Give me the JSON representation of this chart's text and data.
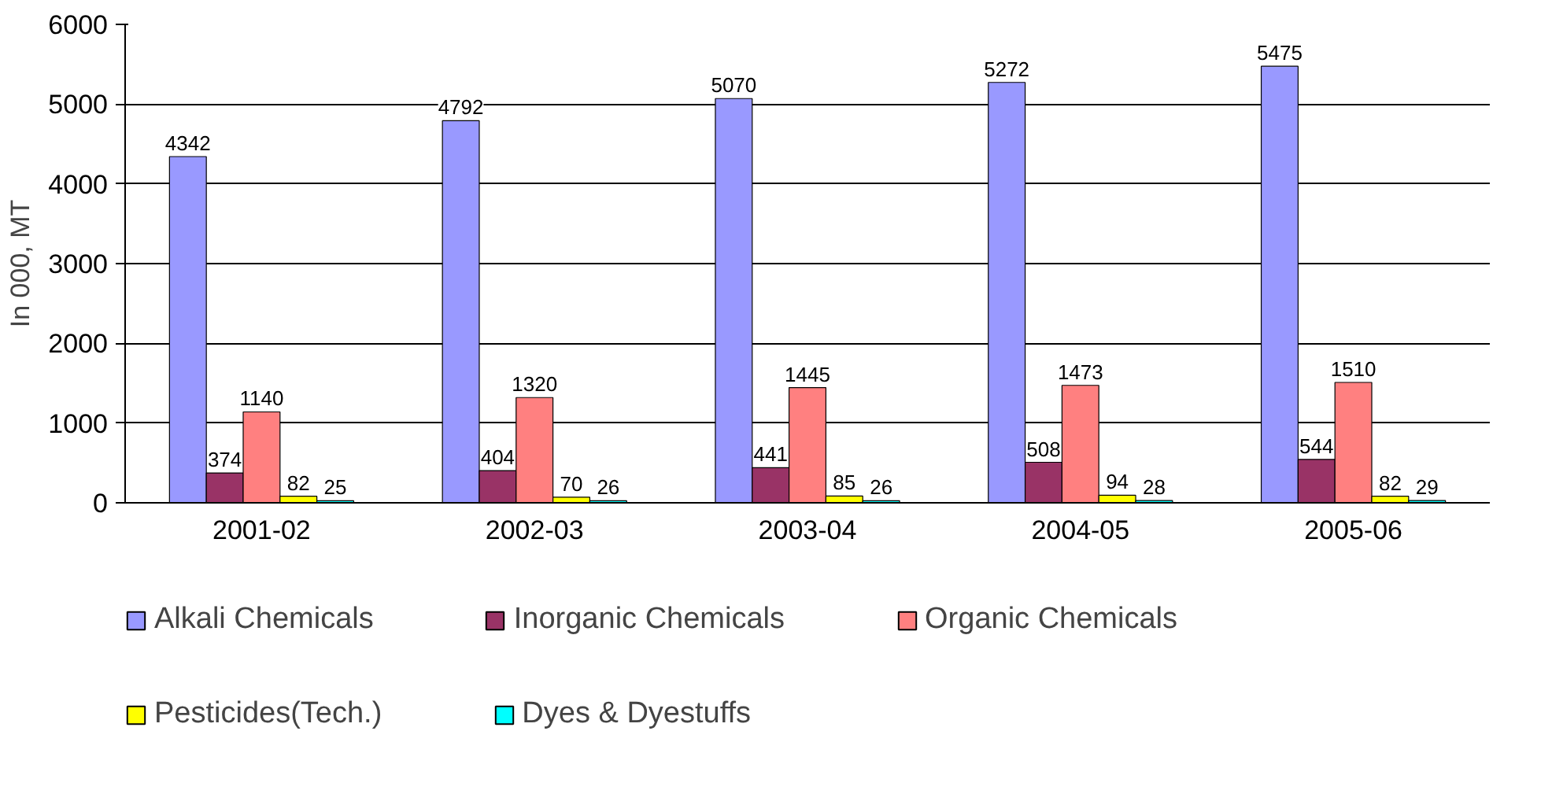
{
  "chart_data": {
    "type": "bar",
    "ylabel": "In 000, MT",
    "categories": [
      "2001-02",
      "2002-03",
      "2003-04",
      "2004-05",
      "2005-06"
    ],
    "series": [
      {
        "name": "Alkali Chemicals",
        "color": "#9999ff",
        "values": [
          4342,
          4792,
          5070,
          5272,
          5475
        ]
      },
      {
        "name": "Inorganic Chemicals",
        "color": "#993366",
        "values": [
          374,
          404,
          441,
          508,
          544
        ]
      },
      {
        "name": "Organic Chemicals",
        "color": "#ff8080",
        "values": [
          1140,
          1320,
          1445,
          1473,
          1510
        ]
      },
      {
        "name": "Pesticides(Tech.)",
        "color": "#ffff00",
        "values": [
          82,
          70,
          85,
          94,
          82
        ]
      },
      {
        "name": "Dyes & Dyestuffs",
        "color": "#00ffff",
        "values": [
          25,
          26,
          26,
          28,
          29
        ]
      }
    ],
    "ylim": [
      0,
      6000
    ],
    "yticks": [
      0,
      1000,
      2000,
      3000,
      4000,
      5000,
      6000
    ],
    "grid": "y",
    "legend": "bottom",
    "data_labels": true
  }
}
